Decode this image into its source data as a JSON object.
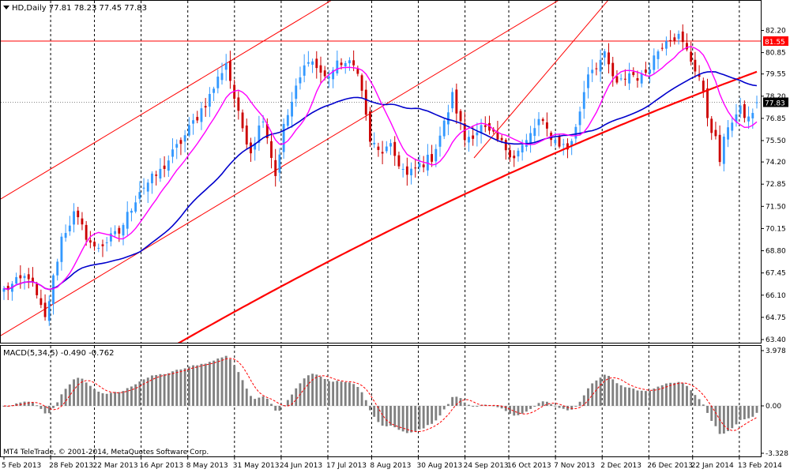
{
  "header": {
    "symbol_label": "HD,Daily",
    "ohlc": "77.81 78.23 77.45 77.83"
  },
  "macd": {
    "label": "MACD(5,34,5)",
    "values": "-0.490 -0.762"
  },
  "copyright": "MT4 TeleTrade, © 2001-2014, MetaQuotes Software Corp.",
  "colors": {
    "bull": "#3399ff",
    "bear": "#cc0000",
    "ma_fast": "#ff00ff",
    "ma_mid": "#0000cc",
    "ma_slow": "#ff0000",
    "channel": "#ff0000",
    "hline": "#ff0000",
    "histogram": "#808080",
    "signal": "#ff0000"
  },
  "chart_data": [
    {
      "type": "candlestick",
      "name": "price-panel",
      "ylim": [
        63.4,
        83.0
      ],
      "y_ticks": [
        "82.20",
        "80.85",
        "79.55",
        "78.20",
        "76.85",
        "75.50",
        "74.20",
        "72.85",
        "71.50",
        "70.15",
        "68.80",
        "67.45",
        "66.10",
        "64.75",
        "63.40"
      ],
      "x_ticks": [
        "5 Feb 2013",
        "28 Feb 2013",
        "22 Mar 2013",
        "16 Apr 2013",
        "8 May 2013",
        "31 May 2013",
        "24 Jun 2013",
        "17 Jul 2013",
        "8 Aug 2013",
        "30 Aug 2013",
        "24 Sep 2013",
        "16 Oct 2013",
        "7 Nov 2013",
        "2 Dec 2013",
        "26 Dec 2013",
        "22 Jan 2014",
        "13 Feb 2014"
      ],
      "horizontal_line": {
        "value": 81.55,
        "label": "81.55"
      },
      "current_price": {
        "value": 77.83,
        "label": "77.83"
      },
      "close_anchors": [
        [
          0,
          66.4
        ],
        [
          6,
          67.3
        ],
        [
          10,
          64.6
        ],
        [
          14,
          69.6
        ],
        [
          17,
          71.0
        ],
        [
          22,
          68.9
        ],
        [
          28,
          69.9
        ],
        [
          33,
          72.5
        ],
        [
          38,
          73.6
        ],
        [
          44,
          75.8
        ],
        [
          50,
          78.2
        ],
        [
          54,
          80.3
        ],
        [
          57,
          77.0
        ],
        [
          60,
          74.9
        ],
        [
          63,
          77.0
        ],
        [
          66,
          73.4
        ],
        [
          68,
          76.3
        ],
        [
          71,
          78.6
        ],
        [
          74,
          80.6
        ],
        [
          78,
          79.3
        ],
        [
          82,
          80.3
        ],
        [
          86,
          79.9
        ],
        [
          89,
          75.5
        ],
        [
          91,
          74.8
        ],
        [
          94,
          75.0
        ],
        [
          98,
          73.3
        ],
        [
          101,
          74.0
        ],
        [
          104,
          74.5
        ],
        [
          107,
          76.5
        ],
        [
          109,
          78.2
        ],
        [
          112,
          75.6
        ],
        [
          116,
          76.3
        ],
        [
          120,
          75.5
        ],
        [
          124,
          74.6
        ],
        [
          127,
          75.4
        ],
        [
          130,
          76.7
        ],
        [
          134,
          75.5
        ],
        [
          137,
          75.0
        ],
        [
          139,
          76.2
        ],
        [
          142,
          79.7
        ],
        [
          146,
          80.6
        ],
        [
          149,
          78.8
        ],
        [
          152,
          79.6
        ],
        [
          155,
          79.3
        ],
        [
          158,
          80.6
        ],
        [
          161,
          81.8
        ],
        [
          164,
          81.8
        ],
        [
          166,
          80.9
        ],
        [
          169,
          79.4
        ],
        [
          171,
          77.0
        ],
        [
          173,
          75.5
        ],
        [
          174,
          74.3
        ],
        [
          176,
          76.5
        ],
        [
          179,
          77.3
        ],
        [
          181,
          76.8
        ],
        [
          183,
          77.83
        ]
      ]
    },
    {
      "type": "bar",
      "name": "macd-panel",
      "ylim": [
        -3.328,
        3.978
      ],
      "y_ticks": [
        "3.978",
        "0.00",
        "-3.328"
      ],
      "values_from": "price-panel"
    }
  ]
}
